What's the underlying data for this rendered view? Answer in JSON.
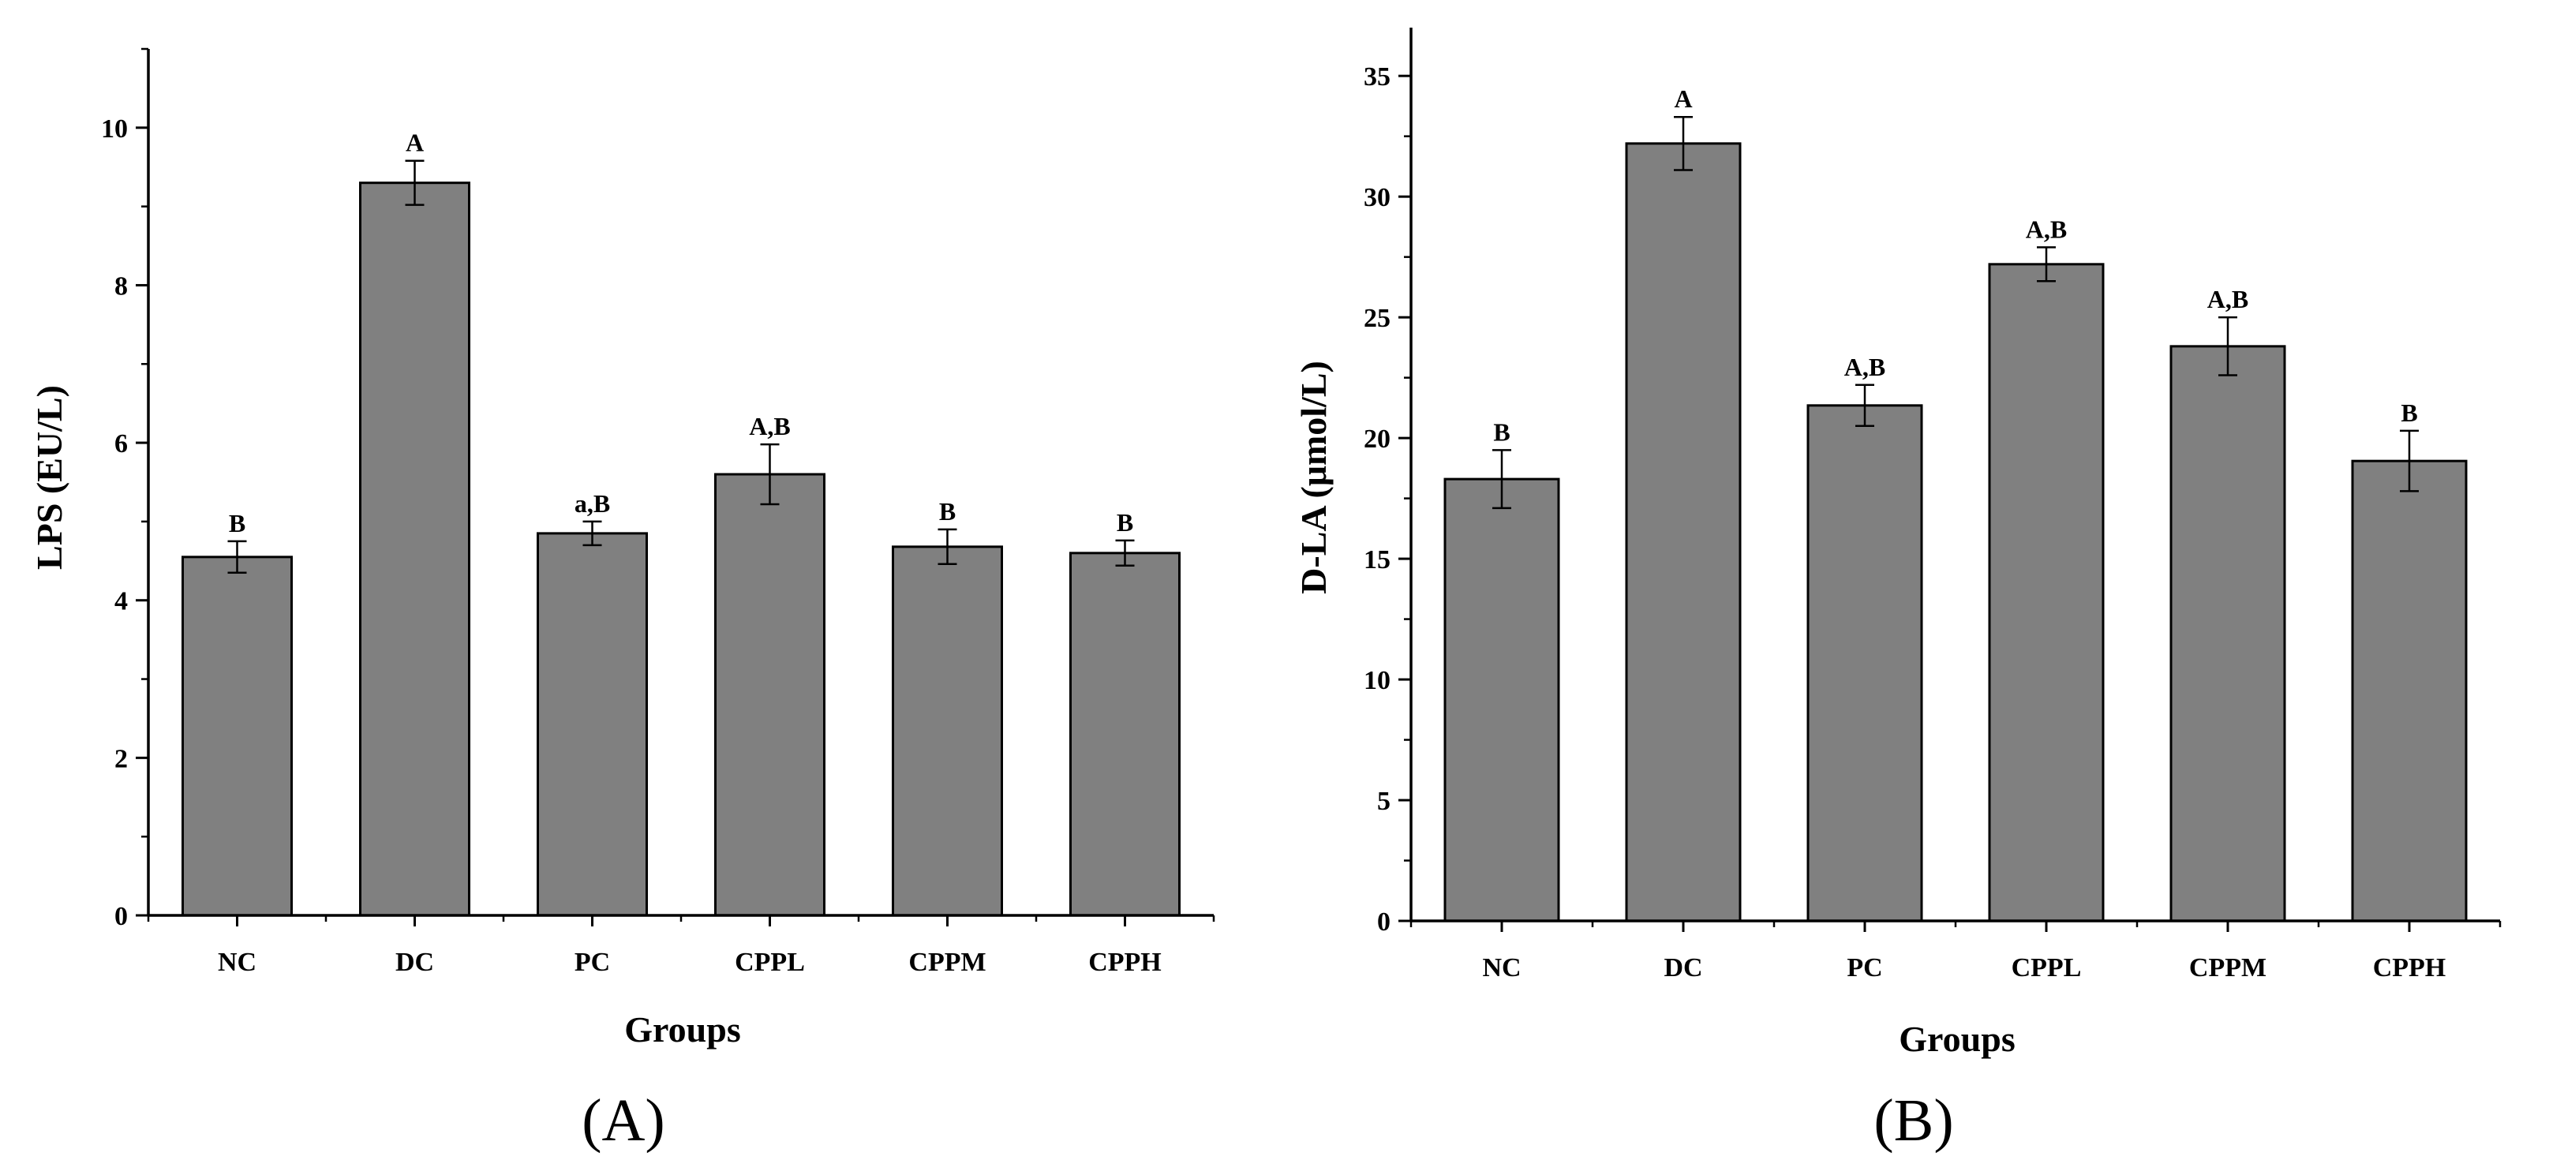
{
  "colors": {
    "bar": "#808080",
    "stroke": "#000000",
    "background": "#ffffff"
  },
  "chart_data": [
    {
      "type": "bar",
      "panel_label": "(A)",
      "title": "",
      "xlabel": "Groups",
      "ylabel": "LPS (EU/L)",
      "categories": [
        "NC",
        "DC",
        "PC",
        "CPPL",
        "CPPM",
        "CPPH"
      ],
      "values": [
        4.55,
        9.3,
        4.85,
        5.6,
        4.68,
        4.6
      ],
      "errors": [
        0.2,
        0.28,
        0.15,
        0.38,
        0.22,
        0.16
      ],
      "annotations": [
        "B",
        "A",
        "a,B",
        "A,B",
        "B",
        "B"
      ],
      "ylim": [
        0,
        11
      ],
      "yticks": [
        0,
        2,
        4,
        6,
        8,
        10
      ],
      "grid": false
    },
    {
      "type": "bar",
      "panel_label": "(B)",
      "title": "",
      "xlabel": "Groups",
      "ylabel": "D-LA (μmol/L)",
      "categories": [
        "NC",
        "DC",
        "PC",
        "CPPL",
        "CPPM",
        "CPPH"
      ],
      "values": [
        18.3,
        32.2,
        21.35,
        27.2,
        23.8,
        19.05
      ],
      "errors": [
        1.2,
        1.1,
        0.85,
        0.7,
        1.2,
        1.25
      ],
      "annotations": [
        "B",
        "A",
        "A,B",
        "A,B",
        "A,B",
        "B"
      ],
      "ylim": [
        0,
        37
      ],
      "yticks": [
        0,
        5,
        10,
        15,
        20,
        25,
        30,
        35
      ],
      "grid": false
    }
  ]
}
